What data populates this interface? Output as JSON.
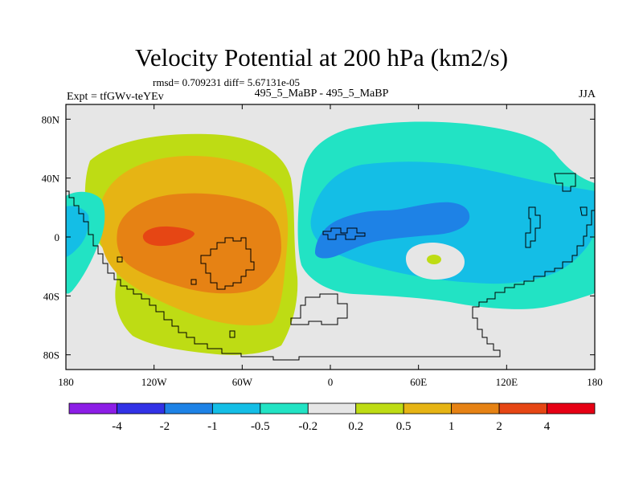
{
  "chart_data": {
    "type": "heatmap",
    "title": "Velocity Potential at 200 hPa (km2/s)",
    "stats_line": "rmsd= 0.709231 diff= 5.67131e-05",
    "left_label": "Expt = tfGWv-teYEv",
    "center_label": "495_5_MaBP - 495_5_MaBP",
    "right_label": "JJA",
    "projection": "cylindrical equidistant (longitude 180 to 180 via 0)",
    "x_ticks": [
      "180",
      "120W",
      "60W",
      "0",
      "60E",
      "120E",
      "180"
    ],
    "x_tick_values": [
      -180,
      -120,
      -60,
      0,
      60,
      120,
      180
    ],
    "y_ticks": [
      "80N",
      "40N",
      "0",
      "40S",
      "80S"
    ],
    "y_tick_values": [
      80,
      40,
      0,
      -40,
      -80
    ],
    "xlim": [
      -180,
      180
    ],
    "ylim": [
      -90,
      90
    ],
    "colorbar": {
      "colors": [
        "#8c1ee6",
        "#3232e6",
        "#1e82e6",
        "#14bee6",
        "#22e3c4",
        "#e6e6e6",
        "#bedc14",
        "#e6b414",
        "#e68214",
        "#e64614",
        "#e60014"
      ],
      "labels": [
        "-4",
        "-2",
        "-1",
        "-0.5",
        "-0.2",
        "0.2",
        "0.5",
        "1",
        "2",
        "4"
      ]
    },
    "features": [
      {
        "name": "Western Hemisphere positive center",
        "max_level": "2 to 4",
        "center_lon": -95,
        "center_lat": 0
      },
      {
        "name": "Eastern Hemisphere negative center",
        "min_level": "-2 to -1",
        "center_lon": 40,
        "center_lat": 5
      },
      {
        "name": "Small positive island",
        "level": "0.5",
        "center_lon": 70,
        "center_lat": -15
      }
    ]
  }
}
